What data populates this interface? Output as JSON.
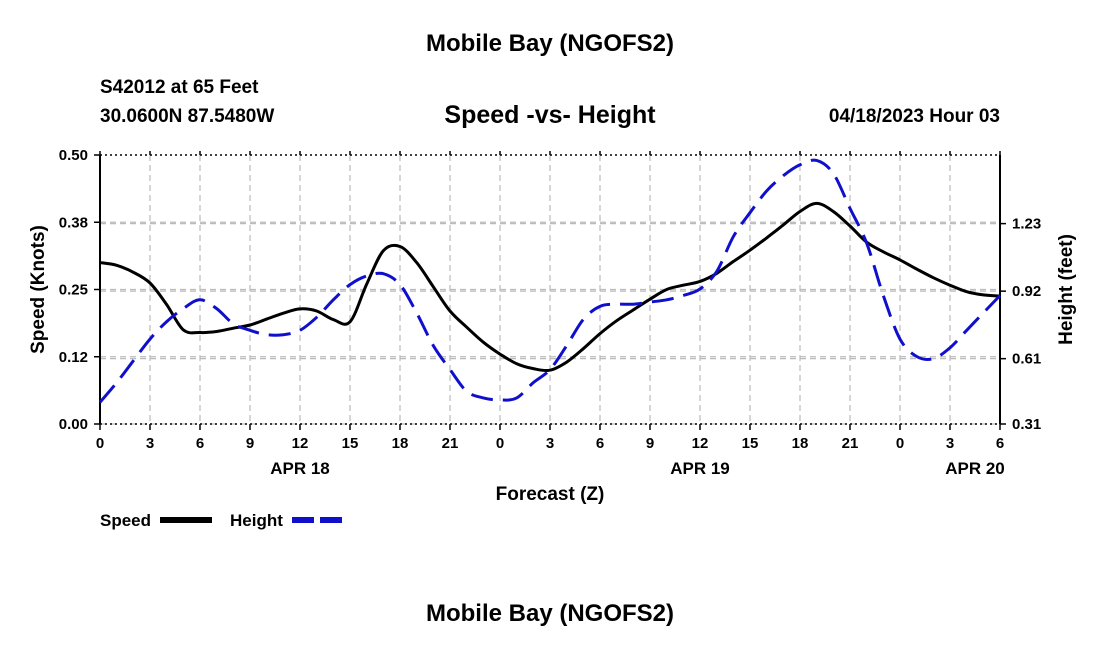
{
  "header": {
    "title": "Mobile Bay (NGOFS2)",
    "station": "S42012 at 65 Feet",
    "coords": "30.0600N  87.5480W",
    "subtitle": "Speed -vs- Height",
    "datetime": "04/18/2023 Hour 03"
  },
  "footer": {
    "title": "Mobile Bay (NGOFS2)"
  },
  "colors": {
    "speed": "#000000",
    "height": "#1010cc",
    "grid": "#bbbbbb"
  },
  "chart_data": {
    "type": "line",
    "xlabel": "Forecast (Z)",
    "ylabel": "Speed (Knots)",
    "y2label": "Height (feet)",
    "xlim": [
      0,
      54
    ],
    "ylim": [
      0.0,
      0.5
    ],
    "y2lim": [
      0.31,
      1.545
    ],
    "x_ticks": [
      0,
      3,
      6,
      9,
      12,
      15,
      18,
      21,
      24,
      27,
      30,
      33,
      36,
      39,
      42,
      45,
      48,
      51,
      54
    ],
    "x_tick_labels": [
      "0",
      "3",
      "6",
      "9",
      "12",
      "15",
      "18",
      "21",
      "0",
      "3",
      "6",
      "9",
      "12",
      "15",
      "18",
      "21",
      "0",
      "3",
      "6"
    ],
    "date_labels": [
      {
        "x": 12,
        "label": "APR 18"
      },
      {
        "x": 36,
        "label": "APR 19"
      },
      {
        "x": 52.5,
        "label": "APR 20"
      }
    ],
    "y_ticks": [
      0.0,
      0.125,
      0.25,
      0.375,
      0.5
    ],
    "y_tick_labels": [
      "0.00",
      "0.12",
      "0.25",
      "0.38",
      "0.50"
    ],
    "y2_ticks": [
      0.31,
      0.61,
      0.92,
      1.23
    ],
    "y2_tick_labels": [
      "0.31",
      "0.61",
      "0.92",
      "1.23"
    ],
    "legend": [
      {
        "name": "Speed",
        "style": "solid"
      },
      {
        "name": "Height",
        "style": "dashed"
      }
    ],
    "series": [
      {
        "name": "Speed",
        "axis": "left",
        "x": [
          0,
          1,
          2,
          3,
          4,
          5,
          6,
          7,
          8,
          9,
          10,
          11,
          12,
          13,
          14,
          15,
          16,
          17,
          18,
          19,
          20,
          21,
          22,
          23,
          24,
          25,
          26,
          27,
          28,
          29,
          30,
          31,
          32,
          33,
          34,
          35,
          36,
          37,
          38,
          39,
          40,
          41,
          42,
          43,
          44,
          45,
          46,
          47,
          48,
          49,
          50,
          51,
          52,
          53,
          54
        ],
        "values": [
          0.3,
          0.295,
          0.282,
          0.262,
          0.222,
          0.175,
          0.17,
          0.172,
          0.178,
          0.184,
          0.195,
          0.206,
          0.214,
          0.21,
          0.194,
          0.19,
          0.26,
          0.322,
          0.33,
          0.3,
          0.255,
          0.21,
          0.18,
          0.152,
          0.13,
          0.112,
          0.103,
          0.1,
          0.115,
          0.14,
          0.168,
          0.192,
          0.212,
          0.232,
          0.25,
          0.258,
          0.265,
          0.28,
          0.302,
          0.323,
          0.346,
          0.37,
          0.395,
          0.41,
          0.395,
          0.368,
          0.338,
          0.32,
          0.305,
          0.288,
          0.272,
          0.258,
          0.246,
          0.24,
          0.238
        ]
      },
      {
        "name": "Height",
        "axis": "right",
        "x": [
          0,
          1,
          2,
          3,
          4,
          5,
          6,
          7,
          8,
          9,
          10,
          11,
          12,
          13,
          14,
          15,
          16,
          17,
          18,
          19,
          20,
          21,
          22,
          23,
          24,
          25,
          26,
          27,
          28,
          29,
          30,
          31,
          32,
          33,
          34,
          35,
          36,
          37,
          38,
          39,
          40,
          41,
          42,
          43,
          44,
          45,
          46,
          47,
          48,
          49,
          50,
          51,
          52,
          53,
          54
        ],
        "values": [
          0.41,
          0.5,
          0.6,
          0.7,
          0.78,
          0.84,
          0.88,
          0.84,
          0.77,
          0.74,
          0.72,
          0.72,
          0.74,
          0.8,
          0.88,
          0.95,
          0.99,
          1.0,
          0.95,
          0.82,
          0.67,
          0.56,
          0.46,
          0.43,
          0.42,
          0.43,
          0.5,
          0.56,
          0.67,
          0.79,
          0.85,
          0.86,
          0.86,
          0.87,
          0.88,
          0.9,
          0.93,
          1.01,
          1.17,
          1.28,
          1.38,
          1.45,
          1.5,
          1.52,
          1.46,
          1.3,
          1.14,
          0.9,
          0.7,
          0.62,
          0.61,
          0.66,
          0.74,
          0.82,
          0.9
        ]
      }
    ]
  }
}
